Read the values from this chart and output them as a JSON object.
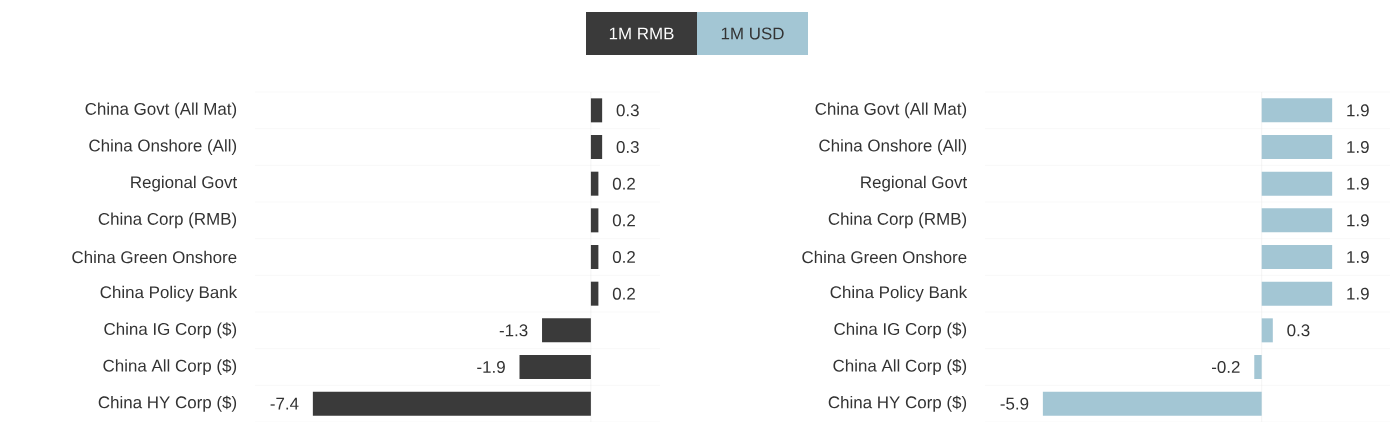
{
  "chart_data": [
    {
      "type": "bar",
      "orientation": "horizontal",
      "categories": [
        "China Govt (All Mat)",
        "China Onshore (All)",
        "Regional Govt",
        "China Corp (RMB)",
        "China Green Onshore",
        "China Policy Bank",
        "China IG Corp ($)",
        "China All Corp ($)",
        "China HY Corp ($)"
      ],
      "series": [
        {
          "name": "1M RMB",
          "color": "#3a3a3a",
          "values": [
            0.3,
            0.3,
            0.2,
            0.2,
            0.2,
            0.2,
            -1.3,
            -1.9,
            -7.4
          ]
        }
      ],
      "data_labels": true,
      "grid": "y",
      "legend": "top",
      "tick_labels": "y"
    },
    {
      "type": "bar",
      "orientation": "horizontal",
      "categories": [
        "China Govt (All Mat)",
        "China Onshore (All)",
        "Regional Govt",
        "China Corp (RMB)",
        "China Green Onshore",
        "China Policy Bank",
        "China IG Corp ($)",
        "China All Corp ($)",
        "China HY Corp ($)"
      ],
      "series": [
        {
          "name": "1M USD",
          "color": "#a3c6d4",
          "values": [
            1.9,
            1.9,
            1.9,
            1.9,
            1.9,
            1.9,
            0.3,
            -0.2,
            -5.9
          ]
        }
      ],
      "data_labels": true,
      "grid": "y",
      "legend": "top",
      "tick_labels": "y"
    }
  ]
}
